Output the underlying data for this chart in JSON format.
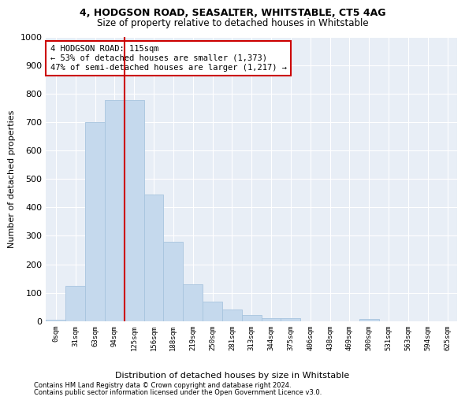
{
  "title1": "4, HODGSON ROAD, SEASALTER, WHITSTABLE, CT5 4AG",
  "title2": "Size of property relative to detached houses in Whitstable",
  "xlabel": "Distribution of detached houses by size in Whitstable",
  "ylabel": "Number of detached properties",
  "bar_labels": [
    "0sqm",
    "31sqm",
    "63sqm",
    "94sqm",
    "125sqm",
    "156sqm",
    "188sqm",
    "219sqm",
    "250sqm",
    "281sqm",
    "313sqm",
    "344sqm",
    "375sqm",
    "406sqm",
    "438sqm",
    "469sqm",
    "500sqm",
    "531sqm",
    "563sqm",
    "594sqm",
    "625sqm"
  ],
  "bar_values": [
    5,
    125,
    700,
    778,
    778,
    445,
    278,
    130,
    70,
    40,
    22,
    12,
    10,
    0,
    0,
    0,
    8,
    0,
    0,
    0,
    0
  ],
  "bar_color": "#c5d9ed",
  "bar_edge_color": "#a8c4de",
  "vline_color": "#cc0000",
  "annotation_text": "4 HODGSON ROAD: 115sqm\n← 53% of detached houses are smaller (1,373)\n47% of semi-detached houses are larger (1,217) →",
  "annotation_box_color": "#ffffff",
  "annotation_box_edge": "#cc0000",
  "ylim": [
    0,
    1000
  ],
  "yticks": [
    0,
    100,
    200,
    300,
    400,
    500,
    600,
    700,
    800,
    900,
    1000
  ],
  "bg_color": "#e8eef6",
  "footer1": "Contains HM Land Registry data © Crown copyright and database right 2024.",
  "footer2": "Contains public sector information licensed under the Open Government Licence v3.0."
}
